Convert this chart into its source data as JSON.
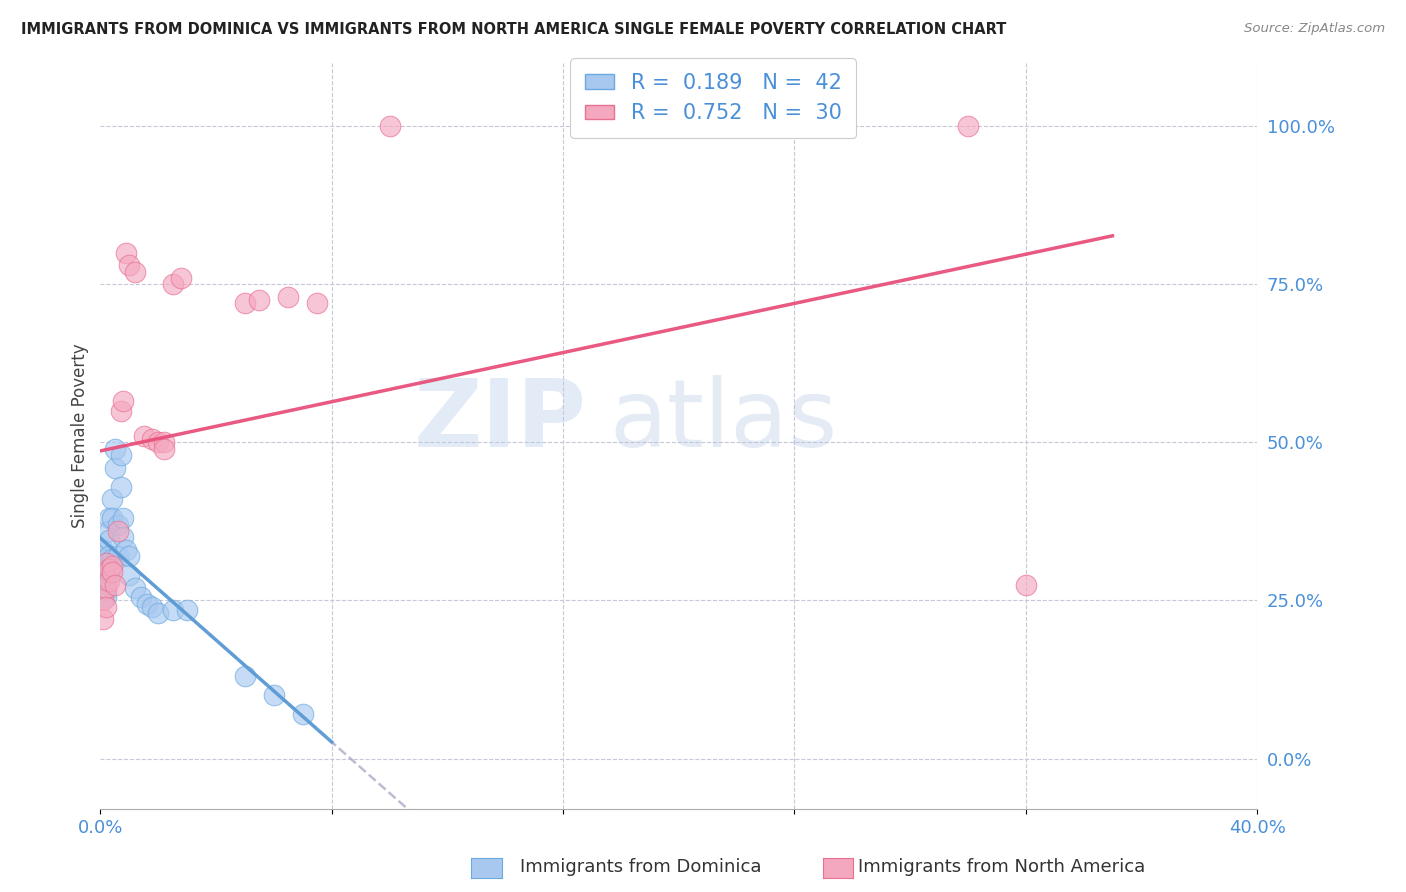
{
  "title": "IMMIGRANTS FROM DOMINICA VS IMMIGRANTS FROM NORTH AMERICA SINGLE FEMALE POVERTY CORRELATION CHART",
  "source": "Source: ZipAtlas.com",
  "ylabel": "Single Female Poverty",
  "xlim": [
    0.0,
    0.4
  ],
  "ylim": [
    -0.08,
    1.1
  ],
  "plot_ylim": [
    -0.08,
    1.1
  ],
  "xtick_pos": [
    0.0,
    0.08,
    0.16,
    0.24,
    0.32,
    0.4
  ],
  "xtick_labels": [
    "0.0%",
    "",
    "",
    "",
    "",
    "40.0%"
  ],
  "ytick_positions_right": [
    0.0,
    0.25,
    0.5,
    0.75,
    1.0
  ],
  "ytick_labels_right": [
    "0.0%",
    "25.0%",
    "50.0%",
    "75.0%",
    "100.0%"
  ],
  "legend_r_blue": "0.189",
  "legend_n_blue": "42",
  "legend_r_pink": "0.752",
  "legend_n_pink": "30",
  "blue_fill": "#A8C8F0",
  "pink_fill": "#F4A8C0",
  "blue_edge": "#6AAAE0",
  "pink_edge": "#E87090",
  "blue_line": "#5B9BD5",
  "pink_line": "#E8507A",
  "gray_dash": "#A0A0C0",
  "watermark_zip": "ZIP",
  "watermark_atlas": "atlas",
  "blue_x": [
    0.001,
    0.001,
    0.001,
    0.001,
    0.001,
    0.001,
    0.001,
    0.001,
    0.002,
    0.002,
    0.002,
    0.002,
    0.002,
    0.002,
    0.003,
    0.003,
    0.003,
    0.003,
    0.004,
    0.004,
    0.004,
    0.005,
    0.005,
    0.006,
    0.006,
    0.007,
    0.007,
    0.008,
    0.008,
    0.009,
    0.01,
    0.01,
    0.012,
    0.014,
    0.016,
    0.018,
    0.02,
    0.025,
    0.03,
    0.05,
    0.06,
    0.07
  ],
  "blue_y": [
    0.3,
    0.295,
    0.305,
    0.315,
    0.32,
    0.33,
    0.29,
    0.285,
    0.3,
    0.31,
    0.285,
    0.275,
    0.265,
    0.255,
    0.38,
    0.36,
    0.345,
    0.32,
    0.41,
    0.38,
    0.315,
    0.49,
    0.46,
    0.37,
    0.32,
    0.48,
    0.43,
    0.38,
    0.35,
    0.33,
    0.32,
    0.29,
    0.27,
    0.255,
    0.245,
    0.24,
    0.23,
    0.235,
    0.235,
    0.13,
    0.1,
    0.07
  ],
  "pink_x": [
    0.001,
    0.001,
    0.002,
    0.002,
    0.002,
    0.003,
    0.003,
    0.004,
    0.004,
    0.005,
    0.006,
    0.007,
    0.008,
    0.009,
    0.01,
    0.012,
    0.015,
    0.018,
    0.02,
    0.022,
    0.022,
    0.025,
    0.028,
    0.05,
    0.055,
    0.065,
    0.075,
    0.1,
    0.3,
    0.32
  ],
  "pink_y": [
    0.25,
    0.22,
    0.31,
    0.27,
    0.24,
    0.3,
    0.28,
    0.305,
    0.295,
    0.275,
    0.36,
    0.55,
    0.565,
    0.8,
    0.78,
    0.77,
    0.51,
    0.505,
    0.5,
    0.5,
    0.49,
    0.75,
    0.76,
    0.72,
    0.725,
    0.73,
    0.72,
    1.0,
    1.0,
    0.275
  ]
}
